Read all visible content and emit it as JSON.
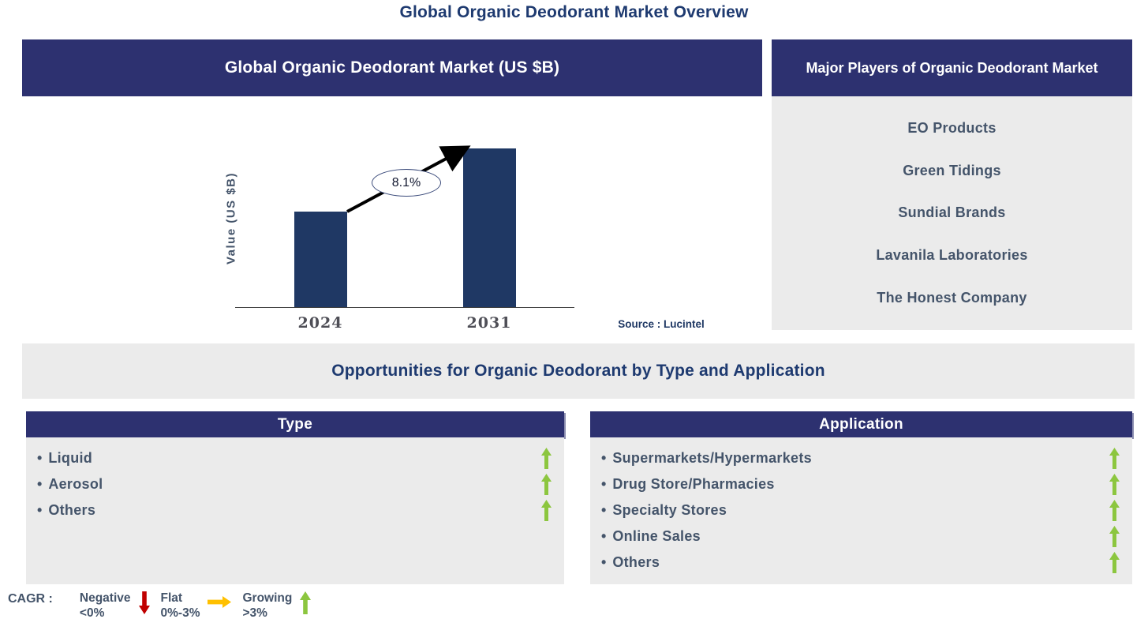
{
  "page_title": "Global Organic Deodorant Market Overview",
  "glyphs": {
    "bullet": "•"
  },
  "colors": {
    "header_navy": "#2d3170",
    "bar_navy": "#1f3864",
    "panel_gray": "#ebebeb",
    "title_navy": "#1e3a70",
    "text_slate": "#44546a",
    "growing_green": "#8cc63f",
    "negative_red": "#c00000",
    "flat_orange": "#ffc000"
  },
  "market_chart": {
    "header": "Global Organic Deodorant Market (US $B)",
    "source": "Source : Lucintel",
    "chart_data": {
      "type": "bar",
      "title": "Global Organic Deodorant Market (US $B)",
      "categories": [
        "2024",
        "2031"
      ],
      "values_relative": [
        0.6,
        1.0
      ],
      "growth_label": "8.1%",
      "growth_annotation": "CAGR 8.1% from 2024 to 2031 shown in ellipse on arrow",
      "xlabel": "",
      "ylabel": "Value (US $B)",
      "y_axis_ticks": "none (unlabeled axis)",
      "grid": "off",
      "bar_color": "#1f3864"
    }
  },
  "major_players": {
    "header": "Major Players of Organic Deodorant Market",
    "players": [
      "EO Products",
      "Green Tidings",
      "Sundial Brands",
      "Lavanila Laboratories",
      "The Honest Company"
    ]
  },
  "opportunities": {
    "title": "Opportunities for Organic Deodorant by Type and Application"
  },
  "type_panel": {
    "header": "Type",
    "items": [
      {
        "label": "Liquid",
        "trend": "growing"
      },
      {
        "label": "Aerosol",
        "trend": "growing"
      },
      {
        "label": "Others",
        "trend": "growing"
      }
    ]
  },
  "application_panel": {
    "header": "Application",
    "items": [
      {
        "label": "Supermarkets/Hypermarkets",
        "trend": "growing"
      },
      {
        "label": "Drug Store/Pharmacies",
        "trend": "growing"
      },
      {
        "label": "Specialty Stores",
        "trend": "growing"
      },
      {
        "label": "Online Sales",
        "trend": "growing"
      },
      {
        "label": "Others",
        "trend": "growing"
      }
    ]
  },
  "cagr_legend": {
    "label": "CAGR :",
    "entries": [
      {
        "name": "Negative",
        "range": "<0%",
        "arrow": "down",
        "color": "#c00000"
      },
      {
        "name": "Flat",
        "range": "0%-3%",
        "arrow": "right",
        "color": "#ffc000"
      },
      {
        "name": "Growing",
        "range": ">3%",
        "arrow": "up",
        "color": "#8cc63f"
      }
    ]
  }
}
